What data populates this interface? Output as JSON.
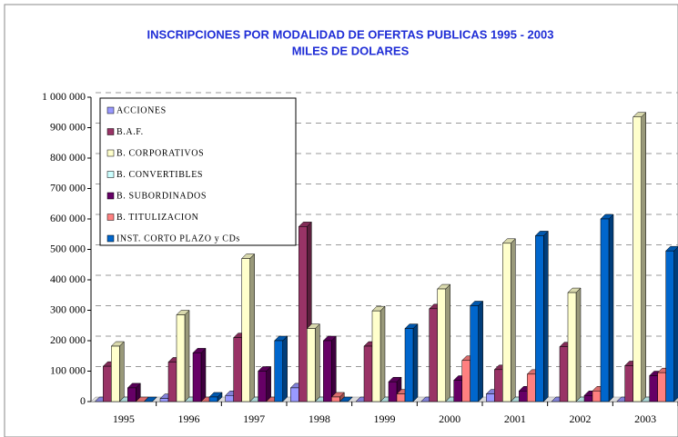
{
  "chart_data": {
    "type": "bar3d",
    "title": "INSCRIPCIONES POR MODALIDAD DE OFERTAS PUBLICAS  1995 - 2003",
    "subtitle": "MILES DE DOLARES",
    "categories": [
      "1995",
      "1996",
      "1997",
      "1998",
      "1999",
      "2000",
      "2001",
      "2002",
      "2003"
    ],
    "series": [
      {
        "name": "ACCIONES",
        "color": "#9999ff",
        "values": [
          0,
          10000,
          20000,
          45000,
          0,
          0,
          25000,
          0,
          0
        ]
      },
      {
        "name": "B.A.F.",
        "color": "#993366",
        "values": [
          116000,
          130000,
          210000,
          575000,
          182000,
          305000,
          105000,
          180000,
          118000
        ]
      },
      {
        "name": "B. CORPORATIVOS",
        "color": "#ffffcc",
        "values": [
          182000,
          285000,
          470000,
          240000,
          298000,
          370000,
          520000,
          358000,
          935000
        ]
      },
      {
        "name": "B. CONVERTIBLES",
        "color": "#ccffff",
        "values": [
          0,
          0,
          0,
          0,
          0,
          0,
          0,
          0,
          0
        ]
      },
      {
        "name": "B. SUBORDINADOS",
        "color": "#660066",
        "values": [
          45000,
          160000,
          100000,
          200000,
          65000,
          70000,
          35000,
          20000,
          85000
        ]
      },
      {
        "name": "B. TITULIZACION",
        "color": "#ff8080",
        "values": [
          0,
          0,
          0,
          15000,
          25000,
          135000,
          90000,
          35000,
          95000
        ]
      },
      {
        "name": "INST. CORTO PLAZO y CDs",
        "color": "#0066cc",
        "values": [
          0,
          15000,
          200000,
          0,
          240000,
          315000,
          545000,
          600000,
          495000
        ]
      }
    ],
    "ylim": [
      0,
      1000000
    ],
    "yticks": [
      0,
      {
        "value": 100000,
        "label": "100 000"
      },
      {
        "value": 200000,
        "label": "200 000"
      },
      {
        "value": 300000,
        "label": "300 000"
      },
      {
        "value": 400000,
        "label": "400 000"
      },
      {
        "value": 500000,
        "label": "500 000"
      },
      {
        "value": 600000,
        "label": "600 000"
      },
      {
        "value": 700000,
        "label": "700 000"
      },
      {
        "value": 800000,
        "label": "800 000"
      },
      {
        "value": 900000,
        "label": "900 000"
      },
      {
        "value": 1000000,
        "label": "1 000 000"
      }
    ],
    "grid": true,
    "legend": "upper left"
  }
}
